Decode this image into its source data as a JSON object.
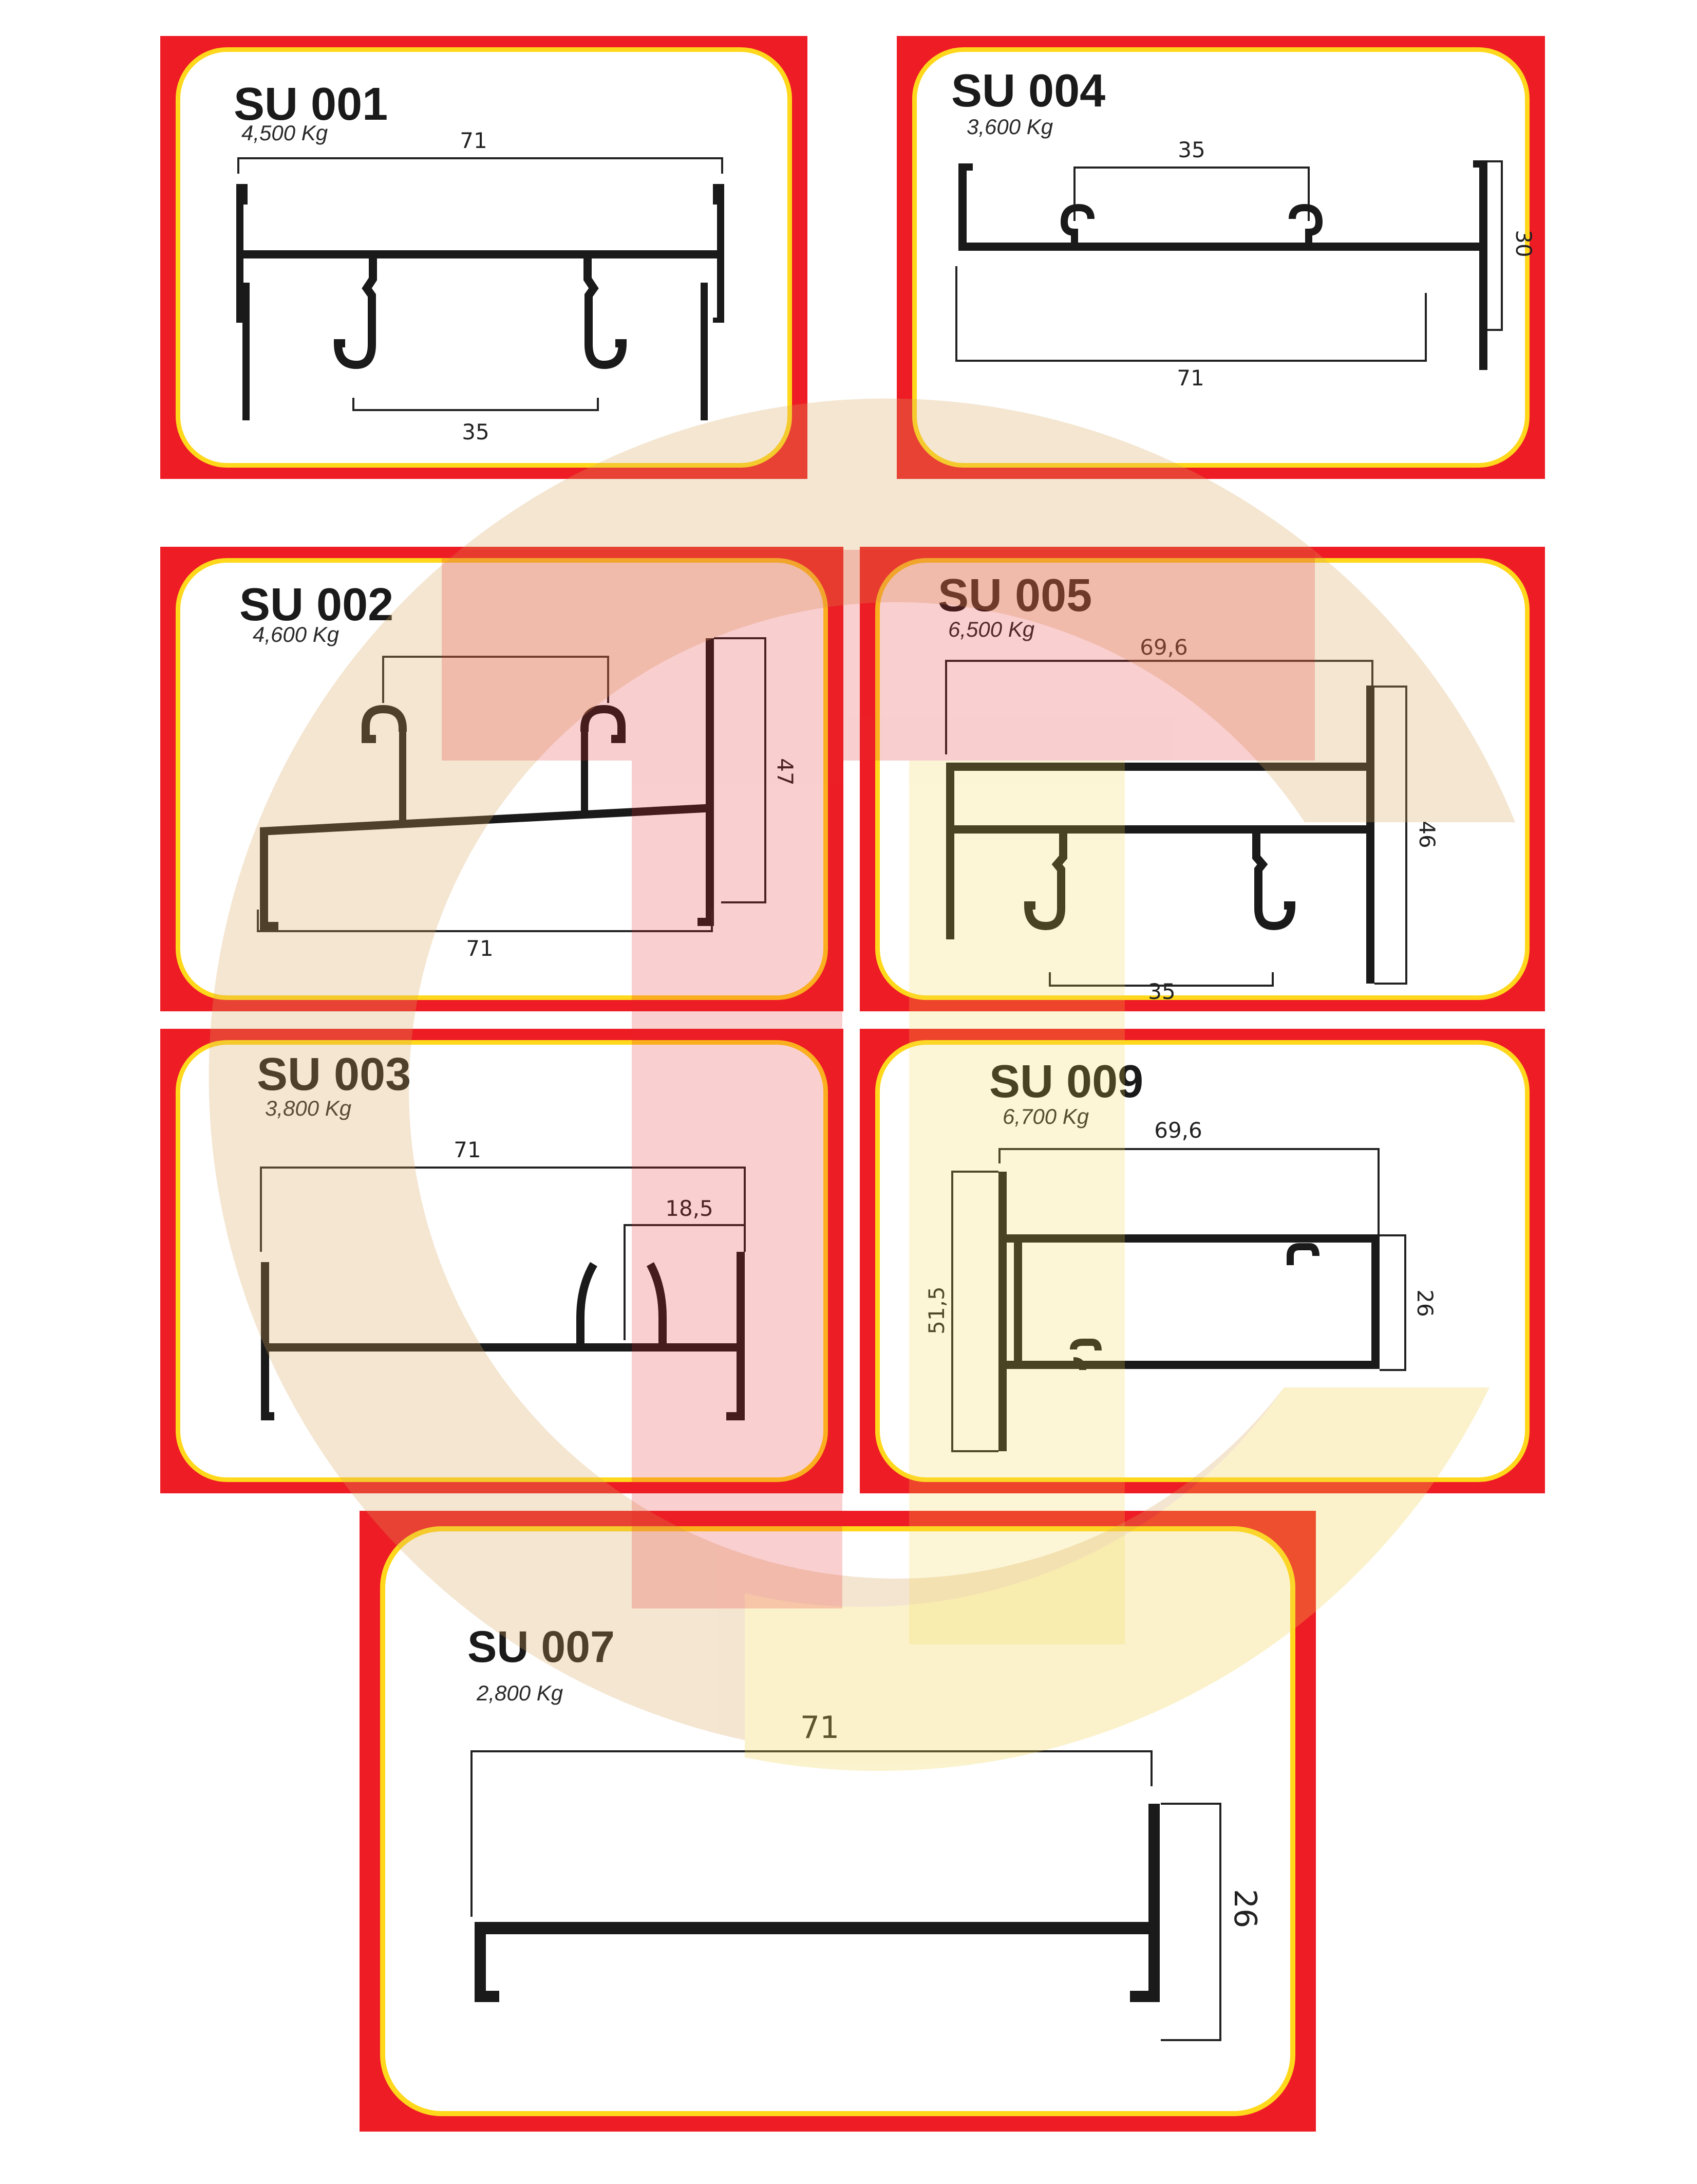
{
  "profiles": [
    {
      "code": "SU 001",
      "weight": "4,500 Kg",
      "dims": [
        "71",
        "35"
      ]
    },
    {
      "code": "SU 004",
      "weight": "3,600 Kg",
      "dims": [
        "35",
        "30",
        "71"
      ]
    },
    {
      "code": "SU 002",
      "weight": "4,600 Kg",
      "dims": [
        "47",
        "71"
      ]
    },
    {
      "code": "SU 005",
      "weight": "6,500 Kg",
      "dims": [
        "69,6",
        "46",
        "35"
      ]
    },
    {
      "code": "SU 003",
      "weight": "3,800 Kg",
      "dims": [
        "71",
        "18,5"
      ]
    },
    {
      "code": "SU 009",
      "weight": "6,700 Kg",
      "dims": [
        "69,6",
        "51,5",
        "26"
      ]
    },
    {
      "code": "SU 007",
      "weight": "2,800 Kg",
      "dims": [
        "71",
        "26"
      ]
    }
  ],
  "colors": {
    "frame": "#ee1c25",
    "border": "#ffd81c",
    "profile": "#1a1a1a",
    "watermark_ring": "#d9a55b",
    "watermark_letter": "#e8262a"
  }
}
